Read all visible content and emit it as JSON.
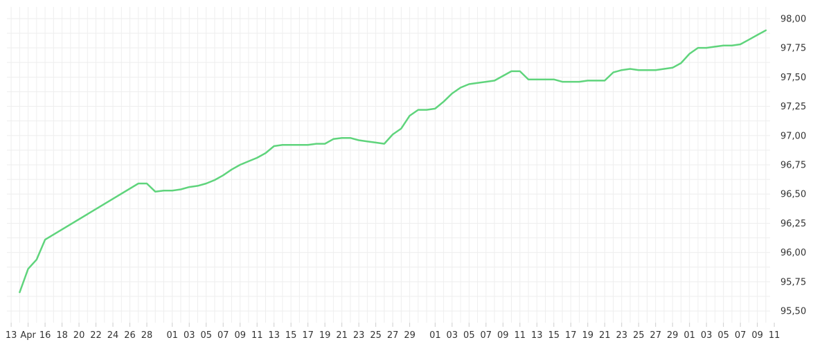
{
  "chart_data": {
    "type": "line",
    "title": "",
    "xlabel": "",
    "ylabel": "",
    "grid": true,
    "legend": "none",
    "colors": {
      "line": "#5fd47c",
      "grid": "#eeeeee",
      "text": "#333333"
    },
    "ylim": [
      95.4,
      98.1
    ],
    "y_ticks": [
      95.5,
      95.75,
      96.0,
      96.25,
      96.5,
      96.75,
      97.0,
      97.25,
      97.5,
      97.75,
      98.0
    ],
    "y_tick_labels": [
      "95,50",
      "95,75",
      "96,00",
      "96,25",
      "96,50",
      "96,75",
      "97,00",
      "97,25",
      "97,50",
      "97,75",
      "98,00"
    ],
    "x_range": [
      -1.5,
      88.5
    ],
    "x_ticks": [
      {
        "x": -1,
        "label": "13"
      },
      {
        "x": 1,
        "label": "Apr"
      },
      {
        "x": 3,
        "label": "16"
      },
      {
        "x": 5,
        "label": "18"
      },
      {
        "x": 7,
        "label": "20"
      },
      {
        "x": 9,
        "label": "22"
      },
      {
        "x": 11,
        "label": "24"
      },
      {
        "x": 13,
        "label": "26"
      },
      {
        "x": 15,
        "label": "28"
      },
      {
        "x": 18,
        "label": "01"
      },
      {
        "x": 20,
        "label": "03"
      },
      {
        "x": 22,
        "label": "05"
      },
      {
        "x": 24,
        "label": "07"
      },
      {
        "x": 26,
        "label": "09"
      },
      {
        "x": 28,
        "label": "11"
      },
      {
        "x": 30,
        "label": "13"
      },
      {
        "x": 32,
        "label": "15"
      },
      {
        "x": 34,
        "label": "17"
      },
      {
        "x": 36,
        "label": "19"
      },
      {
        "x": 38,
        "label": "21"
      },
      {
        "x": 40,
        "label": "23"
      },
      {
        "x": 42,
        "label": "25"
      },
      {
        "x": 44,
        "label": "27"
      },
      {
        "x": 46,
        "label": "29"
      },
      {
        "x": 49,
        "label": "01"
      },
      {
        "x": 51,
        "label": "03"
      },
      {
        "x": 53,
        "label": "05"
      },
      {
        "x": 55,
        "label": "07"
      },
      {
        "x": 57,
        "label": "09"
      },
      {
        "x": 59,
        "label": "11"
      },
      {
        "x": 61,
        "label": "13"
      },
      {
        "x": 63,
        "label": "15"
      },
      {
        "x": 65,
        "label": "17"
      },
      {
        "x": 67,
        "label": "19"
      },
      {
        "x": 69,
        "label": "21"
      },
      {
        "x": 71,
        "label": "23"
      },
      {
        "x": 73,
        "label": "25"
      },
      {
        "x": 75,
        "label": "27"
      },
      {
        "x": 77,
        "label": "29"
      },
      {
        "x": 79,
        "label": "01"
      },
      {
        "x": 81,
        "label": "03"
      },
      {
        "x": 83,
        "label": "05"
      },
      {
        "x": 85,
        "label": "07"
      },
      {
        "x": 87,
        "label": "09"
      },
      {
        "x": 89,
        "label": "11"
      }
    ],
    "series": [
      {
        "x": [
          0,
          1,
          2,
          3,
          14,
          15,
          16,
          17,
          18,
          19,
          20,
          21,
          22,
          23,
          24,
          25,
          26,
          27,
          28,
          29,
          30,
          31,
          32,
          33,
          34,
          35,
          36,
          37,
          38,
          39,
          40,
          41,
          42,
          43,
          44,
          45,
          46,
          47,
          48,
          49,
          50,
          51,
          52,
          53,
          54,
          55,
          56,
          57,
          58,
          59,
          60,
          61,
          62,
          63,
          64,
          65,
          66,
          67,
          68,
          69,
          70,
          71,
          72,
          73,
          74,
          75,
          76,
          77,
          78,
          79,
          80,
          81,
          82,
          83,
          84,
          85,
          86,
          87,
          88
        ],
        "y": [
          95.66,
          95.86,
          95.94,
          96.11,
          96.59,
          96.59,
          96.52,
          96.53,
          96.53,
          96.54,
          96.56,
          96.57,
          96.59,
          96.62,
          96.66,
          96.71,
          96.75,
          96.78,
          96.81,
          96.85,
          96.91,
          96.92,
          96.92,
          96.92,
          96.92,
          96.93,
          96.93,
          96.97,
          96.98,
          96.98,
          96.96,
          96.95,
          96.94,
          96.93,
          97.01,
          97.06,
          97.17,
          97.22,
          97.22,
          97.23,
          97.29,
          97.36,
          97.41,
          97.44,
          97.45,
          97.46,
          97.47,
          97.51,
          97.55,
          97.55,
          97.48,
          97.48,
          97.48,
          97.48,
          97.46,
          97.46,
          97.46,
          97.47,
          97.47,
          97.47,
          97.54,
          97.56,
          97.57,
          97.56,
          97.56,
          97.56,
          97.57,
          97.58,
          97.62,
          97.7,
          97.75,
          97.75,
          97.76,
          97.77,
          97.77,
          97.78,
          97.82,
          97.86,
          97.9
        ]
      }
    ]
  }
}
